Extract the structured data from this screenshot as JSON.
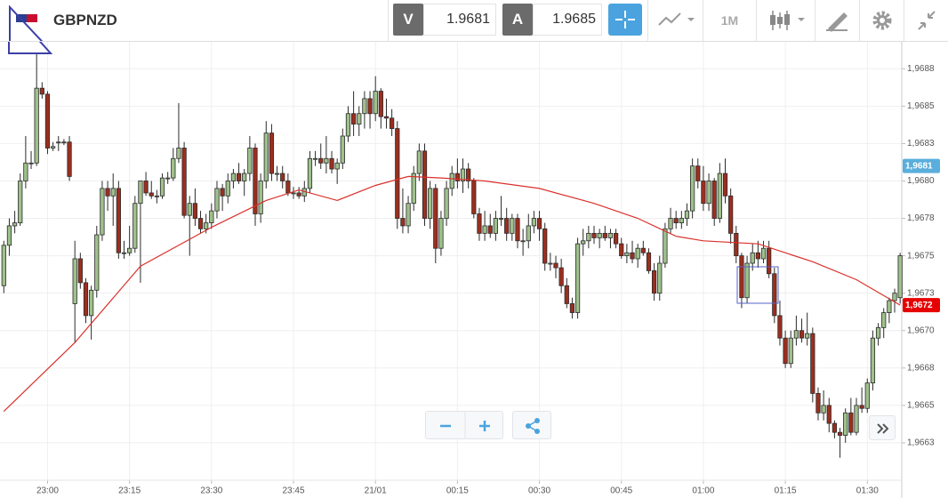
{
  "toolbar": {
    "symbol": "GBPNZD",
    "bid_label": "V",
    "bid": "1.9681",
    "ask_label": "A",
    "ask": "1.9685",
    "timeframe": "1M"
  },
  "chart_data": {
    "type": "candlestick",
    "x": [
      1372,
      1373,
      1374,
      1375,
      1376,
      1377,
      1378,
      1379,
      1380,
      1381,
      1382,
      1383,
      1384,
      1385,
      1386,
      1387,
      1388,
      1389,
      1390,
      1391,
      1392,
      1393,
      1394,
      1395,
      1396,
      1397,
      1398,
      1399,
      1400,
      1401,
      1402,
      1403,
      1404,
      1405,
      1406,
      1407,
      1408,
      1409,
      1410,
      1411,
      1412,
      1413,
      1414,
      1415,
      1416,
      1417,
      1418,
      1419,
      1420,
      1421,
      1422,
      1423,
      1424,
      1425,
      1426,
      1427,
      1428,
      1429,
      1430,
      1431,
      1432,
      1433,
      1434,
      1435,
      1436,
      1437,
      1438,
      1439,
      1440,
      1441,
      1442,
      1443,
      1444,
      1445,
      1446,
      1447,
      1448,
      1449,
      1450,
      1451,
      1452,
      1453,
      1454,
      1455,
      1456,
      1457,
      1458,
      1459,
      1460,
      1461,
      1462,
      1463,
      1464,
      1465,
      1466,
      1467,
      1468,
      1469,
      1470,
      1471,
      1472,
      1473,
      1474,
      1475,
      1476,
      1477,
      1478,
      1479,
      1480,
      1481,
      1482,
      1483,
      1484,
      1485,
      1486,
      1487,
      1488,
      1489,
      1490,
      1491,
      1492,
      1493,
      1494,
      1495,
      1496,
      1497,
      1498,
      1499,
      1500,
      1501,
      1502,
      1503,
      1504,
      1505,
      1506,
      1507,
      1508,
      1509,
      1510,
      1511,
      1512,
      1513,
      1514,
      1515,
      1516,
      1517,
      1518,
      1519,
      1520,
      1521,
      1522,
      1523,
      1524,
      1525,
      1526,
      1527,
      1528,
      1529,
      1530,
      1531,
      1532,
      1533,
      1534,
      1535,
      1536
    ],
    "open": [
      1.9673,
      1.96757,
      1.9677,
      1.96772,
      1.968,
      1.96812,
      1.96812,
      1.96862,
      1.96858,
      1.96822,
      1.96826,
      1.96826,
      1.96826,
      1.96718,
      1.96748,
      1.96732,
      1.9671,
      1.96727,
      1.96764,
      1.96795,
      1.9679,
      1.96795,
      1.96752,
      1.96752,
      1.96755,
      1.96785,
      1.968,
      1.96792,
      1.9679,
      1.9679,
      1.96802,
      1.96802,
      1.96815,
      1.96822,
      1.96777,
      1.96785,
      1.96775,
      1.96768,
      1.96772,
      1.9678,
      1.96795,
      1.9679,
      1.968,
      1.96805,
      1.968,
      1.96805,
      1.96822,
      1.96778,
      1.968,
      1.96832,
      1.96805,
      1.96805,
      1.968,
      1.96792,
      1.96792,
      1.9679,
      1.96795,
      1.96815,
      1.96815,
      1.96812,
      1.96815,
      1.96808,
      1.96812,
      1.9683,
      1.96845,
      1.96838,
      1.96845,
      1.96855,
      1.96845,
      1.9686,
      1.96843,
      1.96842,
      1.96835,
      1.96775,
      1.9677,
      1.96785,
      1.96805,
      1.9682,
      1.96775,
      1.96795,
      1.96755,
      1.96775,
      1.96795,
      1.96805,
      1.968,
      1.96808,
      1.968,
      1.96778,
      1.96765,
      1.9677,
      1.96765,
      1.96775,
      1.96775,
      1.96765,
      1.96775,
      1.9676,
      1.9676,
      1.9677,
      1.96775,
      1.96768,
      1.96745,
      1.96745,
      1.96742,
      1.9673,
      1.96718,
      1.96712,
      1.96758,
      1.9676,
      1.96765,
      1.96762,
      1.96765,
      1.96762,
      1.96765,
      1.96758,
      1.9675,
      1.96752,
      1.96748,
      1.96755,
      1.96752,
      1.9674,
      1.96725,
      1.96745,
      1.96768,
      1.96775,
      1.96772,
      1.96775,
      1.9678,
      1.9681,
      1.968,
      1.96785,
      1.968,
      1.96775,
      1.96805,
      1.9679,
      1.96765,
      1.9675,
      1.96722,
      1.96745,
      1.96752,
      1.96748,
      1.96755,
      1.96738,
      1.9671,
      1.96695,
      1.96678,
      1.96695,
      1.967,
      1.96695,
      1.96698,
      1.96658,
      1.96645,
      1.9665,
      1.96638,
      1.96632,
      1.9663,
      1.96645,
      1.96632,
      1.9665,
      1.96648,
      1.96665,
      1.96695,
      1.96702,
      1.96712,
      1.9672,
      1.96722
    ],
    "high": [
      1.9676,
      1.96775,
      1.9678,
      1.96805,
      1.9683,
      1.9682,
      1.96885,
      1.96866,
      1.9686,
      1.96826,
      1.9683,
      1.96828,
      1.9683,
      1.9676,
      1.96752,
      1.96735,
      1.9673,
      1.9677,
      1.968,
      1.968,
      1.96805,
      1.968,
      1.9676,
      1.9677,
      1.9679,
      1.968,
      1.96806,
      1.968,
      1.96794,
      1.96805,
      1.96806,
      1.96822,
      1.96852,
      1.96826,
      1.9679,
      1.96795,
      1.9678,
      1.96778,
      1.96785,
      1.968,
      1.96798,
      1.96805,
      1.96808,
      1.96812,
      1.96808,
      1.9683,
      1.96825,
      1.96805,
      1.9684,
      1.96838,
      1.9681,
      1.9681,
      1.96805,
      1.96796,
      1.96796,
      1.968,
      1.9682,
      1.9682,
      1.96825,
      1.9683,
      1.9682,
      1.96815,
      1.96835,
      1.9685,
      1.9686,
      1.9685,
      1.9686,
      1.9686,
      1.9687,
      1.96862,
      1.96855,
      1.96848,
      1.9684,
      1.96795,
      1.9679,
      1.9681,
      1.96825,
      1.96825,
      1.968,
      1.96798,
      1.9678,
      1.968,
      1.9681,
      1.96815,
      1.96815,
      1.96812,
      1.96802,
      1.96782,
      1.9678,
      1.96778,
      1.9678,
      1.9679,
      1.96782,
      1.96778,
      1.96778,
      1.96768,
      1.96778,
      1.9678,
      1.9678,
      1.96772,
      1.96752,
      1.9675,
      1.96748,
      1.96735,
      1.96722,
      1.96762,
      1.96768,
      1.9677,
      1.9677,
      1.96768,
      1.9677,
      1.96768,
      1.96768,
      1.96762,
      1.96758,
      1.9676,
      1.96758,
      1.9676,
      1.96755,
      1.96745,
      1.9675,
      1.96772,
      1.96782,
      1.9678,
      1.9678,
      1.96785,
      1.96815,
      1.96815,
      1.9681,
      1.96805,
      1.96802,
      1.96812,
      1.96815,
      1.96795,
      1.9677,
      1.96752,
      1.9675,
      1.96758,
      1.9676,
      1.9676,
      1.9676,
      1.96742,
      1.9672,
      1.967,
      1.967,
      1.9671,
      1.96708,
      1.96712,
      1.96702,
      1.96662,
      1.9666,
      1.96655,
      1.9664,
      1.96635,
      1.96648,
      1.96655,
      1.96655,
      1.96662,
      1.96668,
      1.967,
      1.96705,
      1.96715,
      1.96722,
      1.96728,
      1.96752
    ],
    "low": [
      1.96725,
      1.9675,
      1.96765,
      1.9677,
      1.96795,
      1.96808,
      1.9681,
      1.96855,
      1.96818,
      1.9682,
      1.9682,
      1.96824,
      1.968,
      1.96692,
      1.96728,
      1.96705,
      1.96694,
      1.96722,
      1.9676,
      1.9678,
      1.9677,
      1.96748,
      1.96748,
      1.9675,
      1.96752,
      1.96732,
      1.9679,
      1.96788,
      1.96785,
      1.96788,
      1.96798,
      1.968,
      1.96812,
      1.96775,
      1.9675,
      1.9677,
      1.96765,
      1.96765,
      1.96768,
      1.96775,
      1.9678,
      1.96785,
      1.96795,
      1.96798,
      1.9679,
      1.968,
      1.9677,
      1.96772,
      1.96795,
      1.968,
      1.968,
      1.96795,
      1.9679,
      1.96788,
      1.96788,
      1.96786,
      1.96792,
      1.9681,
      1.96808,
      1.96805,
      1.96805,
      1.96798,
      1.96808,
      1.96826,
      1.9683,
      1.9683,
      1.96835,
      1.96835,
      1.9684,
      1.96835,
      1.96835,
      1.9683,
      1.96768,
      1.96765,
      1.96765,
      1.9678,
      1.968,
      1.9677,
      1.96768,
      1.96745,
      1.9675,
      1.9677,
      1.9679,
      1.96795,
      1.96792,
      1.96795,
      1.96775,
      1.9676,
      1.9676,
      1.96762,
      1.9676,
      1.9677,
      1.9676,
      1.9676,
      1.96755,
      1.9675,
      1.96755,
      1.96765,
      1.9676,
      1.9674,
      1.9674,
      1.96735,
      1.96725,
      1.96715,
      1.96708,
      1.96708,
      1.9675,
      1.96755,
      1.96758,
      1.96755,
      1.9676,
      1.96755,
      1.96755,
      1.96748,
      1.96745,
      1.96745,
      1.96742,
      1.9675,
      1.96738,
      1.9672,
      1.9672,
      1.96742,
      1.96765,
      1.96768,
      1.96768,
      1.9677,
      1.96775,
      1.96795,
      1.9678,
      1.9678,
      1.9677,
      1.96772,
      1.96785,
      1.96758,
      1.96745,
      1.96715,
      1.96718,
      1.9674,
      1.96742,
      1.96745,
      1.96735,
      1.96705,
      1.9669,
      1.96675,
      1.96675,
      1.9669,
      1.96692,
      1.9669,
      1.96652,
      1.9664,
      1.9664,
      1.96632,
      1.96628,
      1.96615,
      1.96625,
      1.9663,
      1.9663,
      1.96645,
      1.96645,
      1.9666,
      1.9669,
      1.96695,
      1.96705,
      1.96712,
      1.96718
    ],
    "close": [
      1.96757,
      1.9677,
      1.96772,
      1.968,
      1.96812,
      1.96812,
      1.96862,
      1.96858,
      1.96822,
      1.96823,
      1.96826,
      1.96826,
      1.96803,
      1.96748,
      1.96732,
      1.9671,
      1.96727,
      1.96764,
      1.96795,
      1.9679,
      1.96795,
      1.96752,
      1.96752,
      1.96755,
      1.96785,
      1.968,
      1.96792,
      1.9679,
      1.9679,
      1.96802,
      1.96802,
      1.96815,
      1.96822,
      1.96777,
      1.96785,
      1.96775,
      1.96768,
      1.96772,
      1.9678,
      1.96795,
      1.9679,
      1.968,
      1.96805,
      1.968,
      1.96805,
      1.96822,
      1.96778,
      1.968,
      1.96832,
      1.96805,
      1.96805,
      1.968,
      1.96792,
      1.96792,
      1.9679,
      1.96795,
      1.96815,
      1.96815,
      1.96812,
      1.96815,
      1.96808,
      1.96812,
      1.9683,
      1.96845,
      1.96838,
      1.96845,
      1.96855,
      1.96845,
      1.9686,
      1.96843,
      1.96842,
      1.96835,
      1.96775,
      1.9677,
      1.96785,
      1.96805,
      1.9682,
      1.96775,
      1.96795,
      1.96755,
      1.96775,
      1.96795,
      1.96805,
      1.968,
      1.96808,
      1.968,
      1.96778,
      1.96765,
      1.9677,
      1.96765,
      1.96775,
      1.96775,
      1.96765,
      1.96775,
      1.9676,
      1.9676,
      1.9677,
      1.96775,
      1.96768,
      1.96745,
      1.96745,
      1.96742,
      1.9673,
      1.96718,
      1.96712,
      1.96758,
      1.9676,
      1.96765,
      1.96762,
      1.96765,
      1.96762,
      1.96765,
      1.96758,
      1.9675,
      1.96752,
      1.96748,
      1.96755,
      1.96752,
      1.9674,
      1.96725,
      1.96745,
      1.96768,
      1.96775,
      1.96772,
      1.96775,
      1.9678,
      1.9681,
      1.968,
      1.96785,
      1.968,
      1.96775,
      1.96805,
      1.9679,
      1.96765,
      1.9675,
      1.96722,
      1.96745,
      1.96752,
      1.96748,
      1.96755,
      1.96738,
      1.9671,
      1.96695,
      1.96678,
      1.96695,
      1.967,
      1.96695,
      1.96698,
      1.96658,
      1.96645,
      1.9665,
      1.96638,
      1.96632,
      1.9663,
      1.96645,
      1.96632,
      1.9665,
      1.96648,
      1.96665,
      1.96695,
      1.96702,
      1.96712,
      1.9672,
      1.96725,
      1.9675
    ],
    "up_color": "#9fc18c",
    "down_color": "#9c2e1e",
    "outline_color": "#2b2b2b",
    "ma": {
      "color": "#d9312b",
      "x": [
        1372,
        1385,
        1397,
        1410,
        1420,
        1426,
        1433,
        1440,
        1446,
        1452,
        1460,
        1470,
        1480,
        1488,
        1495,
        1500,
        1510,
        1520,
        1528,
        1536
      ],
      "values": [
        1.96646,
        1.96692,
        1.96743,
        1.96769,
        1.96787,
        1.96794,
        1.96787,
        1.96797,
        1.96803,
        1.96802,
        1.968,
        1.96795,
        1.96785,
        1.96775,
        1.96763,
        1.9676,
        1.96758,
        1.96746,
        1.96734,
        1.96717
      ]
    },
    "price_labels": [
      {
        "value": 1.9681,
        "label": "1,9681",
        "color": "#5aaedc"
      },
      {
        "value": 1.96717,
        "label": "1,9672",
        "color": "#e60000"
      }
    ],
    "xlim": [
      1371.3,
      1536.3
    ],
    "xticks": [
      {
        "value": 1380,
        "label": "23:00"
      },
      {
        "value": 1395,
        "label": "23:15"
      },
      {
        "value": 1410,
        "label": "23:30"
      },
      {
        "value": 1425,
        "label": "23:45"
      },
      {
        "value": 1440,
        "label": "21/01"
      },
      {
        "value": 1455,
        "label": "00:15"
      },
      {
        "value": 1470,
        "label": "00:30"
      },
      {
        "value": 1485,
        "label": "00:45"
      },
      {
        "value": 1500,
        "label": "01:00"
      },
      {
        "value": 1515,
        "label": "01:15"
      },
      {
        "value": 1530,
        "label": "01:30"
      }
    ],
    "ylim": [
      1.966,
      1.96893
    ],
    "yticks": [
      {
        "value": 1.96875,
        "label": "1,9688"
      },
      {
        "value": 1.9685,
        "label": "1,9685"
      },
      {
        "value": 1.96825,
        "label": "1,9683"
      },
      {
        "value": 1.968,
        "label": "1,9680"
      },
      {
        "value": 1.96775,
        "label": "1,9678"
      },
      {
        "value": 1.9675,
        "label": "1,9675"
      },
      {
        "value": 1.96725,
        "label": "1,9673"
      },
      {
        "value": 1.967,
        "label": "1,9670"
      },
      {
        "value": 1.96675,
        "label": "1,9668"
      },
      {
        "value": 1.9665,
        "label": "1,9665"
      },
      {
        "value": 1.96625,
        "label": "1,9663"
      }
    ],
    "grid": true
  }
}
